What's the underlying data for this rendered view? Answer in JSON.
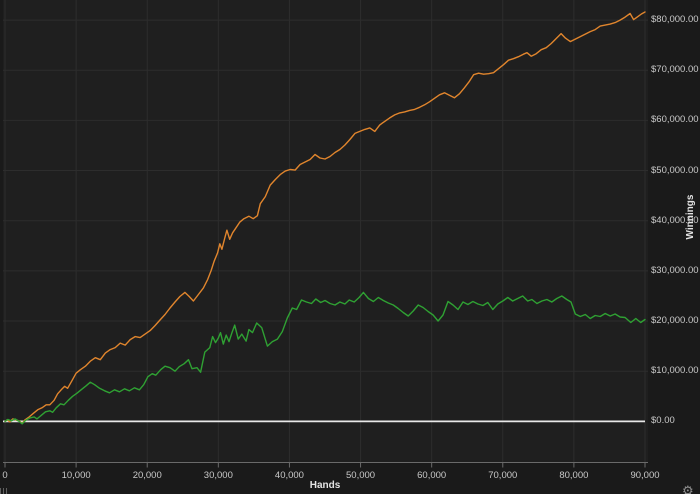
{
  "chart_data": {
    "type": "line",
    "title": "",
    "xlabel": "Hands",
    "ylabel": "Winnings",
    "xlim": [
      0,
      90000
    ],
    "ylim": [
      -8200,
      84000
    ],
    "grid": true,
    "legend": "none",
    "x_ticks": [
      0,
      10000,
      20000,
      30000,
      40000,
      50000,
      60000,
      70000,
      80000,
      90000
    ],
    "x_tick_labels": [
      "0",
      "10,000",
      "20,000",
      "30,000",
      "40,000",
      "50,000",
      "60,000",
      "70,000",
      "80,000",
      "90,000"
    ],
    "y_ticks": [
      0,
      10000,
      20000,
      30000,
      40000,
      50000,
      60000,
      70000,
      80000
    ],
    "y_tick_labels": [
      "$0.00",
      "$10,000.00",
      "$20,000.00",
      "$30,000.00",
      "$40,000.00",
      "$50,000.00",
      "$60,000.00",
      "$70,000.00",
      "$80,000.00"
    ],
    "zero_line_value": 0,
    "series": [
      {
        "name": "total-winnings-line",
        "color": "#e0852d",
        "end_value": 81600,
        "points": [
          [
            0,
            0
          ],
          [
            300,
            300
          ],
          [
            700,
            -100
          ],
          [
            1100,
            500
          ],
          [
            1500,
            300
          ],
          [
            2000,
            100
          ],
          [
            2400,
            -400
          ],
          [
            2800,
            300
          ],
          [
            3400,
            900
          ],
          [
            4000,
            1600
          ],
          [
            4600,
            2300
          ],
          [
            5200,
            2700
          ],
          [
            5800,
            3300
          ],
          [
            6300,
            3300
          ],
          [
            6900,
            4200
          ],
          [
            7400,
            5500
          ],
          [
            7900,
            6300
          ],
          [
            8400,
            7000
          ],
          [
            8800,
            6600
          ],
          [
            9300,
            7800
          ],
          [
            10000,
            9600
          ],
          [
            10600,
            10300
          ],
          [
            11300,
            11000
          ],
          [
            12000,
            12000
          ],
          [
            12700,
            12700
          ],
          [
            13400,
            12300
          ],
          [
            14100,
            13600
          ],
          [
            14800,
            14300
          ],
          [
            15500,
            14700
          ],
          [
            16200,
            15600
          ],
          [
            16900,
            15200
          ],
          [
            17600,
            16300
          ],
          [
            18300,
            16900
          ],
          [
            19000,
            16700
          ],
          [
            19700,
            17400
          ],
          [
            20400,
            18100
          ],
          [
            21100,
            19100
          ],
          [
            21800,
            20200
          ],
          [
            22500,
            21300
          ],
          [
            23200,
            22600
          ],
          [
            23900,
            23800
          ],
          [
            24600,
            24900
          ],
          [
            25300,
            25700
          ],
          [
            25900,
            24900
          ],
          [
            26500,
            24000
          ],
          [
            27200,
            25300
          ],
          [
            27900,
            26600
          ],
          [
            28500,
            28300
          ],
          [
            29000,
            30100
          ],
          [
            29400,
            31900
          ],
          [
            29900,
            33600
          ],
          [
            30200,
            35400
          ],
          [
            30500,
            34300
          ],
          [
            30900,
            36500
          ],
          [
            31200,
            38100
          ],
          [
            31600,
            36300
          ],
          [
            32000,
            37600
          ],
          [
            32400,
            38400
          ],
          [
            33000,
            39700
          ],
          [
            33600,
            40400
          ],
          [
            34300,
            40900
          ],
          [
            34900,
            40400
          ],
          [
            35500,
            41000
          ],
          [
            35900,
            43400
          ],
          [
            36600,
            44800
          ],
          [
            37300,
            47100
          ],
          [
            38000,
            48200
          ],
          [
            38700,
            49200
          ],
          [
            39400,
            49900
          ],
          [
            40100,
            50200
          ],
          [
            40800,
            50100
          ],
          [
            41500,
            51200
          ],
          [
            42200,
            51700
          ],
          [
            42900,
            52200
          ],
          [
            43600,
            53200
          ],
          [
            44300,
            52500
          ],
          [
            45000,
            52300
          ],
          [
            45700,
            52800
          ],
          [
            46400,
            53600
          ],
          [
            47100,
            54200
          ],
          [
            47800,
            55100
          ],
          [
            48500,
            56200
          ],
          [
            49200,
            57400
          ],
          [
            49900,
            57800
          ],
          [
            50600,
            58200
          ],
          [
            51300,
            58500
          ],
          [
            52000,
            57800
          ],
          [
            52700,
            59100
          ],
          [
            53400,
            59800
          ],
          [
            54100,
            60500
          ],
          [
            54800,
            61100
          ],
          [
            55500,
            61500
          ],
          [
            56200,
            61700
          ],
          [
            56900,
            62000
          ],
          [
            57600,
            62200
          ],
          [
            58300,
            62600
          ],
          [
            59000,
            63100
          ],
          [
            59700,
            63700
          ],
          [
            60400,
            64400
          ],
          [
            61100,
            65100
          ],
          [
            61800,
            65500
          ],
          [
            62500,
            65000
          ],
          [
            63200,
            64500
          ],
          [
            63900,
            65300
          ],
          [
            64600,
            66500
          ],
          [
            65300,
            67800
          ],
          [
            65900,
            69100
          ],
          [
            66600,
            69400
          ],
          [
            67300,
            69200
          ],
          [
            68000,
            69300
          ],
          [
            68700,
            69500
          ],
          [
            69400,
            70300
          ],
          [
            70100,
            71100
          ],
          [
            70800,
            72000
          ],
          [
            71500,
            72300
          ],
          [
            72200,
            72700
          ],
          [
            72900,
            73200
          ],
          [
            73400,
            73500
          ],
          [
            74000,
            72800
          ],
          [
            74700,
            73300
          ],
          [
            75400,
            74100
          ],
          [
            76100,
            74500
          ],
          [
            76800,
            75300
          ],
          [
            77500,
            76300
          ],
          [
            78200,
            77300
          ],
          [
            78800,
            76400
          ],
          [
            79500,
            75700
          ],
          [
            80200,
            76200
          ],
          [
            80900,
            76700
          ],
          [
            81600,
            77200
          ],
          [
            82300,
            77700
          ],
          [
            83000,
            78100
          ],
          [
            83700,
            78800
          ],
          [
            84400,
            79000
          ],
          [
            85100,
            79200
          ],
          [
            85800,
            79500
          ],
          [
            86500,
            80000
          ],
          [
            87200,
            80600
          ],
          [
            87900,
            81300
          ],
          [
            88400,
            80100
          ],
          [
            89000,
            80700
          ],
          [
            89500,
            81200
          ],
          [
            90000,
            81600
          ]
        ]
      },
      {
        "name": "showdown-winnings-line",
        "color": "#2fa133",
        "end_value": 20300,
        "points": [
          [
            0,
            0
          ],
          [
            400,
            400
          ],
          [
            900,
            100
          ],
          [
            1400,
            500
          ],
          [
            2000,
            0
          ],
          [
            2400,
            -500
          ],
          [
            2900,
            200
          ],
          [
            3500,
            700
          ],
          [
            4100,
            900
          ],
          [
            4500,
            500
          ],
          [
            5100,
            1200
          ],
          [
            5700,
            1900
          ],
          [
            6300,
            2100
          ],
          [
            6700,
            1800
          ],
          [
            7200,
            2700
          ],
          [
            7800,
            3500
          ],
          [
            8300,
            3300
          ],
          [
            8900,
            4200
          ],
          [
            9500,
            5000
          ],
          [
            10100,
            5600
          ],
          [
            10700,
            6300
          ],
          [
            11400,
            7100
          ],
          [
            12000,
            7800
          ],
          [
            12600,
            7300
          ],
          [
            13300,
            6600
          ],
          [
            14000,
            6100
          ],
          [
            14700,
            5700
          ],
          [
            15400,
            6300
          ],
          [
            16100,
            5900
          ],
          [
            16800,
            6500
          ],
          [
            17500,
            6100
          ],
          [
            18200,
            6700
          ],
          [
            18900,
            6300
          ],
          [
            19500,
            7300
          ],
          [
            20100,
            8900
          ],
          [
            20700,
            9500
          ],
          [
            21200,
            9200
          ],
          [
            21900,
            10300
          ],
          [
            22500,
            11000
          ],
          [
            23200,
            10700
          ],
          [
            23900,
            10000
          ],
          [
            24500,
            10900
          ],
          [
            25200,
            11500
          ],
          [
            25800,
            12300
          ],
          [
            26300,
            10500
          ],
          [
            27000,
            10700
          ],
          [
            27500,
            9800
          ],
          [
            28100,
            13800
          ],
          [
            28800,
            14700
          ],
          [
            29200,
            16900
          ],
          [
            29600,
            15700
          ],
          [
            30000,
            16600
          ],
          [
            30300,
            17700
          ],
          [
            30700,
            15400
          ],
          [
            31100,
            17200
          ],
          [
            31500,
            15900
          ],
          [
            31900,
            17600
          ],
          [
            32300,
            19200
          ],
          [
            32800,
            16400
          ],
          [
            33300,
            17400
          ],
          [
            33900,
            16000
          ],
          [
            34300,
            18300
          ],
          [
            34800,
            17700
          ],
          [
            35400,
            19600
          ],
          [
            36100,
            18700
          ],
          [
            36900,
            15000
          ],
          [
            37600,
            15900
          ],
          [
            38300,
            16400
          ],
          [
            39000,
            17900
          ],
          [
            39700,
            20600
          ],
          [
            40400,
            22600
          ],
          [
            41000,
            22300
          ],
          [
            41700,
            24200
          ],
          [
            42400,
            23800
          ],
          [
            43100,
            23500
          ],
          [
            43700,
            24400
          ],
          [
            44400,
            23700
          ],
          [
            45000,
            24100
          ],
          [
            45700,
            23500
          ],
          [
            46400,
            23200
          ],
          [
            47100,
            23800
          ],
          [
            47800,
            23400
          ],
          [
            48400,
            24200
          ],
          [
            49100,
            23800
          ],
          [
            49800,
            24700
          ],
          [
            50400,
            25700
          ],
          [
            51100,
            24500
          ],
          [
            51800,
            23900
          ],
          [
            52500,
            24700
          ],
          [
            53200,
            24100
          ],
          [
            53900,
            23600
          ],
          [
            54600,
            23200
          ],
          [
            55300,
            22500
          ],
          [
            56000,
            21700
          ],
          [
            56700,
            21000
          ],
          [
            57400,
            22000
          ],
          [
            58100,
            23200
          ],
          [
            58800,
            22700
          ],
          [
            59500,
            21900
          ],
          [
            60200,
            21200
          ],
          [
            60900,
            20000
          ],
          [
            61600,
            21200
          ],
          [
            62300,
            23900
          ],
          [
            63000,
            23200
          ],
          [
            63700,
            22300
          ],
          [
            64400,
            23800
          ],
          [
            65100,
            23300
          ],
          [
            65800,
            23900
          ],
          [
            66500,
            23400
          ],
          [
            67200,
            23100
          ],
          [
            67900,
            23700
          ],
          [
            68600,
            22300
          ],
          [
            69300,
            23400
          ],
          [
            70000,
            24000
          ],
          [
            70700,
            24700
          ],
          [
            71400,
            24000
          ],
          [
            72100,
            24500
          ],
          [
            72800,
            25000
          ],
          [
            73500,
            24000
          ],
          [
            74100,
            24300
          ],
          [
            74800,
            23500
          ],
          [
            75500,
            24000
          ],
          [
            76200,
            24300
          ],
          [
            76900,
            23800
          ],
          [
            77600,
            24500
          ],
          [
            78300,
            25000
          ],
          [
            79000,
            24300
          ],
          [
            79600,
            23800
          ],
          [
            80200,
            21400
          ],
          [
            80900,
            20900
          ],
          [
            81600,
            21300
          ],
          [
            82300,
            20500
          ],
          [
            83000,
            21100
          ],
          [
            83700,
            20900
          ],
          [
            84400,
            21500
          ],
          [
            85100,
            21000
          ],
          [
            85800,
            21400
          ],
          [
            86500,
            20800
          ],
          [
            87200,
            20700
          ],
          [
            88000,
            19700
          ],
          [
            88700,
            20500
          ],
          [
            89400,
            19700
          ],
          [
            90000,
            20300
          ]
        ]
      }
    ]
  },
  "icons": {
    "settings_gear": "⚙"
  },
  "colors": {
    "background": "#1a1a1a",
    "plot_background": "#1f1f1f",
    "gridline": "#2d2d2d",
    "zero_line": "#e8e8e8",
    "axis_line": "#6a6a6a",
    "tick_text": "#c9c9c9",
    "axis_title_text": "#e4e4e4",
    "series_1": "#e0852d",
    "series_2": "#2fa133"
  }
}
